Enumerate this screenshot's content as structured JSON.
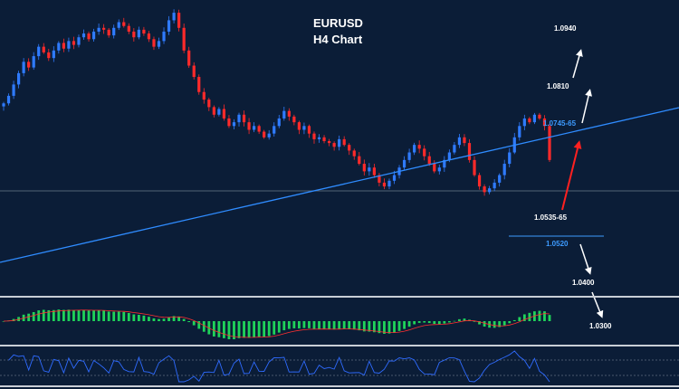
{
  "chart_data": {
    "type": "candlestick",
    "title_line1": "EURUSD",
    "title_line2": "H4 Chart",
    "ylim": [
      1.042,
      1.0995
    ],
    "colors": {
      "up": "#2f7bff",
      "down": "#ff2a2a",
      "background": "#0b1d37",
      "trendline": "#2f8cff",
      "macd_hist": "#1fd35a",
      "macd_signal": "#ff3030",
      "rsi": "#2f6bff"
    },
    "close": [
      1.075,
      1.077,
      1.08,
      1.083,
      1.086,
      1.0845,
      1.0875,
      1.09,
      1.0885,
      1.087,
      1.089,
      1.091,
      1.0895,
      1.0915,
      1.0905,
      1.0925,
      1.0935,
      1.092,
      1.094,
      1.095,
      1.0945,
      1.093,
      1.095,
      1.0965,
      1.0955,
      1.094,
      1.0925,
      1.0945,
      1.0935,
      1.092,
      1.09,
      1.0915,
      1.094,
      1.097,
      1.099,
      1.095,
      1.089,
      1.085,
      1.082,
      1.078,
      1.076,
      1.074,
      1.072,
      1.0735,
      1.071,
      1.069,
      1.07,
      1.072,
      1.07,
      1.068,
      1.069,
      1.0675,
      1.066,
      1.067,
      1.069,
      1.071,
      1.073,
      1.0715,
      1.07,
      1.068,
      1.069,
      1.067,
      1.0655,
      1.066,
      1.065,
      1.0645,
      1.0635,
      1.0655,
      1.064,
      1.0625,
      1.061,
      1.059,
      1.057,
      1.058,
      1.056,
      1.054,
      1.053,
      1.0545,
      1.056,
      1.058,
      1.06,
      1.062,
      1.064,
      1.063,
      1.061,
      1.059,
      1.057,
      1.058,
      1.06,
      1.062,
      1.064,
      1.066,
      1.0645,
      1.06,
      1.056,
      1.053,
      1.0515,
      1.0525,
      1.054,
      1.056,
      1.059,
      1.062,
      1.066,
      1.069,
      1.071,
      1.07,
      1.072,
      1.071,
      1.069,
      1.06
    ],
    "levels": [
      "1.0940",
      "1.0810",
      "1.0745-65",
      "1.0535-65",
      "1.0520",
      "1.0400",
      "1.0300"
    ]
  }
}
